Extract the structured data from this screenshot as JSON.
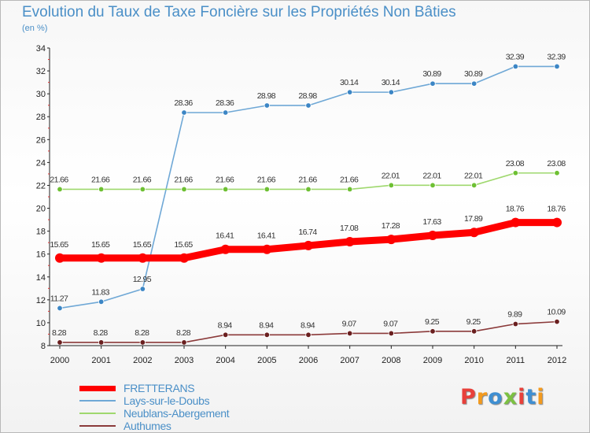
{
  "header": {
    "title": "Evolution du Taux de Taxe Foncière sur les Propriétés Non Bâties",
    "unit": "(en %)"
  },
  "logo": {
    "text": "Proxiti",
    "colors": [
      "#e8403a",
      "#f39a1e",
      "#3f8fd2",
      "#7cc142",
      "#e8403a",
      "#3f8fd2",
      "#f39a1e"
    ]
  },
  "chart_data": {
    "type": "line",
    "title": "Evolution du Taux de Taxe Foncière sur les Propriétés Non Bâties",
    "ylabel": "(en %)",
    "xlabel": "",
    "x": [
      "2000",
      "2001",
      "2002",
      "2003",
      "2004",
      "2005",
      "2006",
      "2007",
      "2008",
      "2009",
      "2010",
      "2011",
      "2012"
    ],
    "ylim": [
      8,
      34
    ],
    "yticks": [
      8,
      10,
      12,
      14,
      16,
      18,
      20,
      22,
      24,
      26,
      28,
      30,
      32,
      34
    ],
    "grid": false,
    "legend": "bottom-left",
    "series": [
      {
        "name": "FRETTERANS",
        "color": "#ff0000",
        "emphasis": true,
        "values": [
          15.65,
          15.65,
          15.65,
          15.65,
          16.41,
          16.41,
          16.74,
          17.08,
          17.28,
          17.63,
          17.89,
          18.76,
          18.76
        ],
        "labels": [
          "15.65",
          "15.65",
          "15.65",
          "15.65",
          "16.41",
          "16.41",
          "16.74",
          "17.08",
          "17.28",
          "17.63",
          "17.89",
          "18.76",
          "18.76"
        ]
      },
      {
        "name": "Lays-sur-le-Doubs",
        "color": "#6fa8d6",
        "marker": "#3c86c5",
        "values": [
          11.27,
          11.83,
          12.95,
          28.36,
          28.36,
          28.98,
          28.98,
          30.14,
          30.14,
          30.89,
          30.89,
          32.39,
          32.39
        ],
        "labels": [
          "11.27",
          "11.83",
          "12.95",
          "28.36",
          "28.36",
          "28.98",
          "28.98",
          "30.14",
          "30.14",
          "30.89",
          "30.89",
          "32.39",
          "32.39"
        ]
      },
      {
        "name": "Neublans-Abergement",
        "color": "#9fd86e",
        "marker": "#6ec033",
        "values": [
          21.66,
          21.66,
          21.66,
          21.66,
          21.66,
          21.66,
          21.66,
          21.66,
          22.01,
          22.01,
          22.01,
          23.08,
          23.08
        ],
        "labels": [
          "21.66",
          "21.66",
          "21.66",
          "21.66",
          "21.66",
          "21.66",
          "21.66",
          "21.66",
          "22.01",
          "22.01",
          "22.01",
          "23.08",
          "23.08"
        ]
      },
      {
        "name": "Authumes",
        "color": "#8b3a3a",
        "marker": "#6a1f1f",
        "values": [
          8.28,
          8.28,
          8.28,
          8.28,
          8.94,
          8.94,
          8.94,
          9.07,
          9.07,
          9.25,
          9.25,
          9.89,
          10.09
        ],
        "labels": [
          "8.28",
          "8.28",
          "8.28",
          "8.28",
          "8.94",
          "8.94",
          "8.94",
          "9.07",
          "9.07",
          "9.25",
          "9.25",
          "9.89",
          "10.09"
        ]
      }
    ]
  }
}
